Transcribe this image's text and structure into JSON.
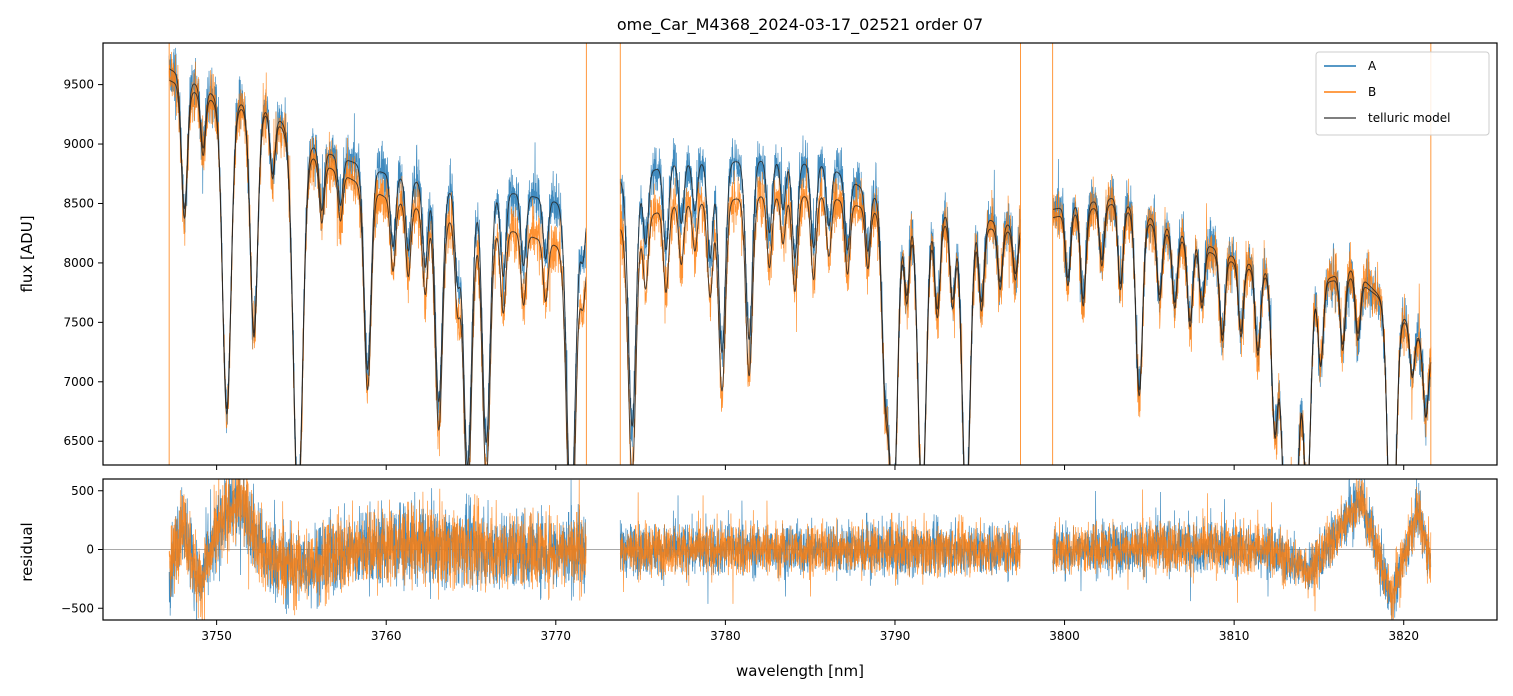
{
  "chart_data": [
    {
      "type": "line",
      "panel": "spectrum",
      "title": "ome_Car_M4368_2024-03-17_02521  order 07",
      "xlabel": "",
      "ylabel": "flux [ADU]",
      "xlim": [
        3743.3,
        3825.5
      ],
      "ylim": [
        6300,
        9850
      ],
      "xticks": [
        3750,
        3760,
        3770,
        3780,
        3790,
        3800,
        3810,
        3820
      ],
      "yticks": [
        6500,
        7000,
        7500,
        8000,
        8500,
        9000,
        9500
      ],
      "ytick_labels": [
        "6500",
        "7000",
        "7500",
        "8000",
        "8500",
        "9000",
        "9500"
      ],
      "segments": [
        [
          3747.2,
          3771.8
        ],
        [
          3773.8,
          3797.4
        ],
        [
          3799.3,
          3821.6
        ]
      ],
      "legend": {
        "location": "top-right",
        "entries": [
          "A",
          "B",
          "telluric model"
        ]
      },
      "series": [
        {
          "name": "A",
          "color": "#1f77b4",
          "continuum": [
            [
              3747,
              9650
            ],
            [
              3750,
              9400
            ],
            [
              3753,
              9280
            ],
            [
              3756,
              8950
            ],
            [
              3760,
              8750
            ],
            [
              3764,
              8600
            ],
            [
              3768,
              8580
            ],
            [
              3771.8,
              8450
            ],
            [
              3773.8,
              8700
            ],
            [
              3777,
              8830
            ],
            [
              3782,
              8860
            ],
            [
              3786,
              8820
            ],
            [
              3790,
              8450
            ],
            [
              3795,
              8380
            ],
            [
              3797.4,
              8300
            ],
            [
              3799.3,
              8450
            ],
            [
              3803,
              8550
            ],
            [
              3806,
              8300
            ],
            [
              3810,
              8050
            ],
            [
              3814,
              7800
            ],
            [
              3817,
              7880
            ],
            [
              3820,
              7550
            ],
            [
              3821.6,
              7250
            ]
          ]
        },
        {
          "name": "B",
          "color": "#ff7f0e",
          "continuum": [
            [
              3747,
              9550
            ],
            [
              3750,
              9350
            ],
            [
              3753,
              9250
            ],
            [
              3756,
              8850
            ],
            [
              3760,
              8550
            ],
            [
              3764,
              8350
            ],
            [
              3768,
              8250
            ],
            [
              3771.8,
              8050
            ],
            [
              3773.8,
              8300
            ],
            [
              3777,
              8480
            ],
            [
              3782,
              8560
            ],
            [
              3786,
              8560
            ],
            [
              3790,
              8380
            ],
            [
              3795,
              8300
            ],
            [
              3797.4,
              8250
            ],
            [
              3799.3,
              8380
            ],
            [
              3803,
              8500
            ],
            [
              3806,
              8250
            ],
            [
              3810,
              8000
            ],
            [
              3814,
              7780
            ],
            [
              3817,
              7950
            ],
            [
              3820,
              7520
            ],
            [
              3821.6,
              7250
            ]
          ]
        },
        {
          "name": "telluric model",
          "color": "#555555",
          "absorption_lines": [
            [
              3748.1,
              1100
            ],
            [
              3749.2,
              500
            ],
            [
              3750.6,
              2600
            ],
            [
              3752.2,
              1900
            ],
            [
              3753.3,
              500
            ],
            [
              3754.8,
              3100
            ],
            [
              3756.2,
              500
            ],
            [
              3757.3,
              400
            ],
            [
              3758.9,
              1700
            ],
            [
              3760.4,
              600
            ],
            [
              3761.3,
              600
            ],
            [
              3762.3,
              700
            ],
            [
              3763.1,
              1800
            ],
            [
              3764.2,
              700
            ],
            [
              3764.8,
              2300
            ],
            [
              3765.9,
              2100
            ],
            [
              3766.9,
              700
            ],
            [
              3768.1,
              600
            ],
            [
              3769.4,
              500
            ],
            [
              3770.9,
              2600
            ],
            [
              3771.6,
              400
            ],
            [
              3774.5,
              2100
            ],
            [
              3775.3,
              600
            ],
            [
              3776.5,
              700
            ],
            [
              3777.4,
              500
            ],
            [
              3778.2,
              400
            ],
            [
              3779.1,
              800
            ],
            [
              3779.8,
              1600
            ],
            [
              3781.4,
              1500
            ],
            [
              3782.6,
              600
            ],
            [
              3783.4,
              400
            ],
            [
              3784.1,
              800
            ],
            [
              3785.2,
              700
            ],
            [
              3786.1,
              500
            ],
            [
              3787.2,
              600
            ],
            [
              3788.4,
              500
            ],
            [
              3789.4,
              1300
            ],
            [
              3789.9,
              2500
            ],
            [
              3790.7,
              700
            ],
            [
              3791.6,
              2400
            ],
            [
              3792.5,
              800
            ],
            [
              3793.4,
              700
            ],
            [
              3794.2,
              2400
            ],
            [
              3795.1,
              700
            ],
            [
              3796.2,
              500
            ],
            [
              3797.1,
              400
            ],
            [
              3800.2,
              600
            ],
            [
              3801.1,
              800
            ],
            [
              3802.2,
              500
            ],
            [
              3803.3,
              700
            ],
            [
              3804.4,
              1500
            ],
            [
              3805.6,
              600
            ],
            [
              3806.5,
              600
            ],
            [
              3807.4,
              700
            ],
            [
              3808.1,
              500
            ],
            [
              3809.3,
              700
            ],
            [
              3810.4,
              600
            ],
            [
              3811.4,
              700
            ],
            [
              3812.4,
              1300
            ],
            [
              3813.0,
              1900
            ],
            [
              3813.6,
              2100
            ],
            [
              3814.3,
              1800
            ],
            [
              3815.1,
              700
            ],
            [
              3816.4,
              600
            ],
            [
              3817.3,
              500
            ],
            [
              3819.3,
              2300
            ],
            [
              3820.5,
              400
            ],
            [
              3821.3,
              600
            ]
          ]
        }
      ]
    },
    {
      "type": "line",
      "panel": "residual",
      "xlabel": "wavelength [nm]",
      "ylabel": "residual",
      "xlim": [
        3743.3,
        3825.5
      ],
      "ylim": [
        -600,
        600
      ],
      "xticks": [
        3750,
        3760,
        3770,
        3780,
        3790,
        3800,
        3810,
        3820
      ],
      "xtick_labels": [
        "3750",
        "3760",
        "3770",
        "3780",
        "3790",
        "3800",
        "3810",
        "3820"
      ],
      "yticks": [
        -500,
        0,
        500
      ],
      "ytick_labels": [
        "−500",
        "0",
        "500"
      ],
      "reference_line": 0,
      "series": [
        {
          "name": "A",
          "color": "#1f77b4",
          "trend": [
            [
              3747.2,
              -200
            ],
            [
              3748,
              250
            ],
            [
              3749,
              -300
            ],
            [
              3750.5,
              300
            ],
            [
              3751.5,
              400
            ],
            [
              3753,
              -100
            ],
            [
              3755,
              -150
            ],
            [
              3758,
              0
            ],
            [
              3762,
              50
            ],
            [
              3766,
              0
            ],
            [
              3771.8,
              0
            ],
            [
              3773.8,
              0
            ],
            [
              3797.4,
              0
            ],
            [
              3799.3,
              0
            ],
            [
              3806,
              30
            ],
            [
              3812,
              0
            ],
            [
              3814.5,
              -180
            ],
            [
              3817.5,
              430
            ],
            [
              3819.3,
              -420
            ],
            [
              3820.8,
              320
            ],
            [
              3821.6,
              -100
            ]
          ]
        },
        {
          "name": "B",
          "color": "#ff7f0e",
          "trend": [
            [
              3747.2,
              -200
            ],
            [
              3748,
              250
            ],
            [
              3749,
              -300
            ],
            [
              3750.5,
              300
            ],
            [
              3751.5,
              400
            ],
            [
              3753,
              -100
            ],
            [
              3755,
              -150
            ],
            [
              3758,
              0
            ],
            [
              3762,
              50
            ],
            [
              3766,
              0
            ],
            [
              3771.8,
              0
            ],
            [
              3773.8,
              0
            ],
            [
              3797.4,
              0
            ],
            [
              3799.3,
              0
            ],
            [
              3806,
              30
            ],
            [
              3812,
              0
            ],
            [
              3814.5,
              -180
            ],
            [
              3817.5,
              430
            ],
            [
              3819.3,
              -420
            ],
            [
              3820.8,
              320
            ],
            [
              3821.6,
              -100
            ]
          ]
        }
      ]
    }
  ]
}
